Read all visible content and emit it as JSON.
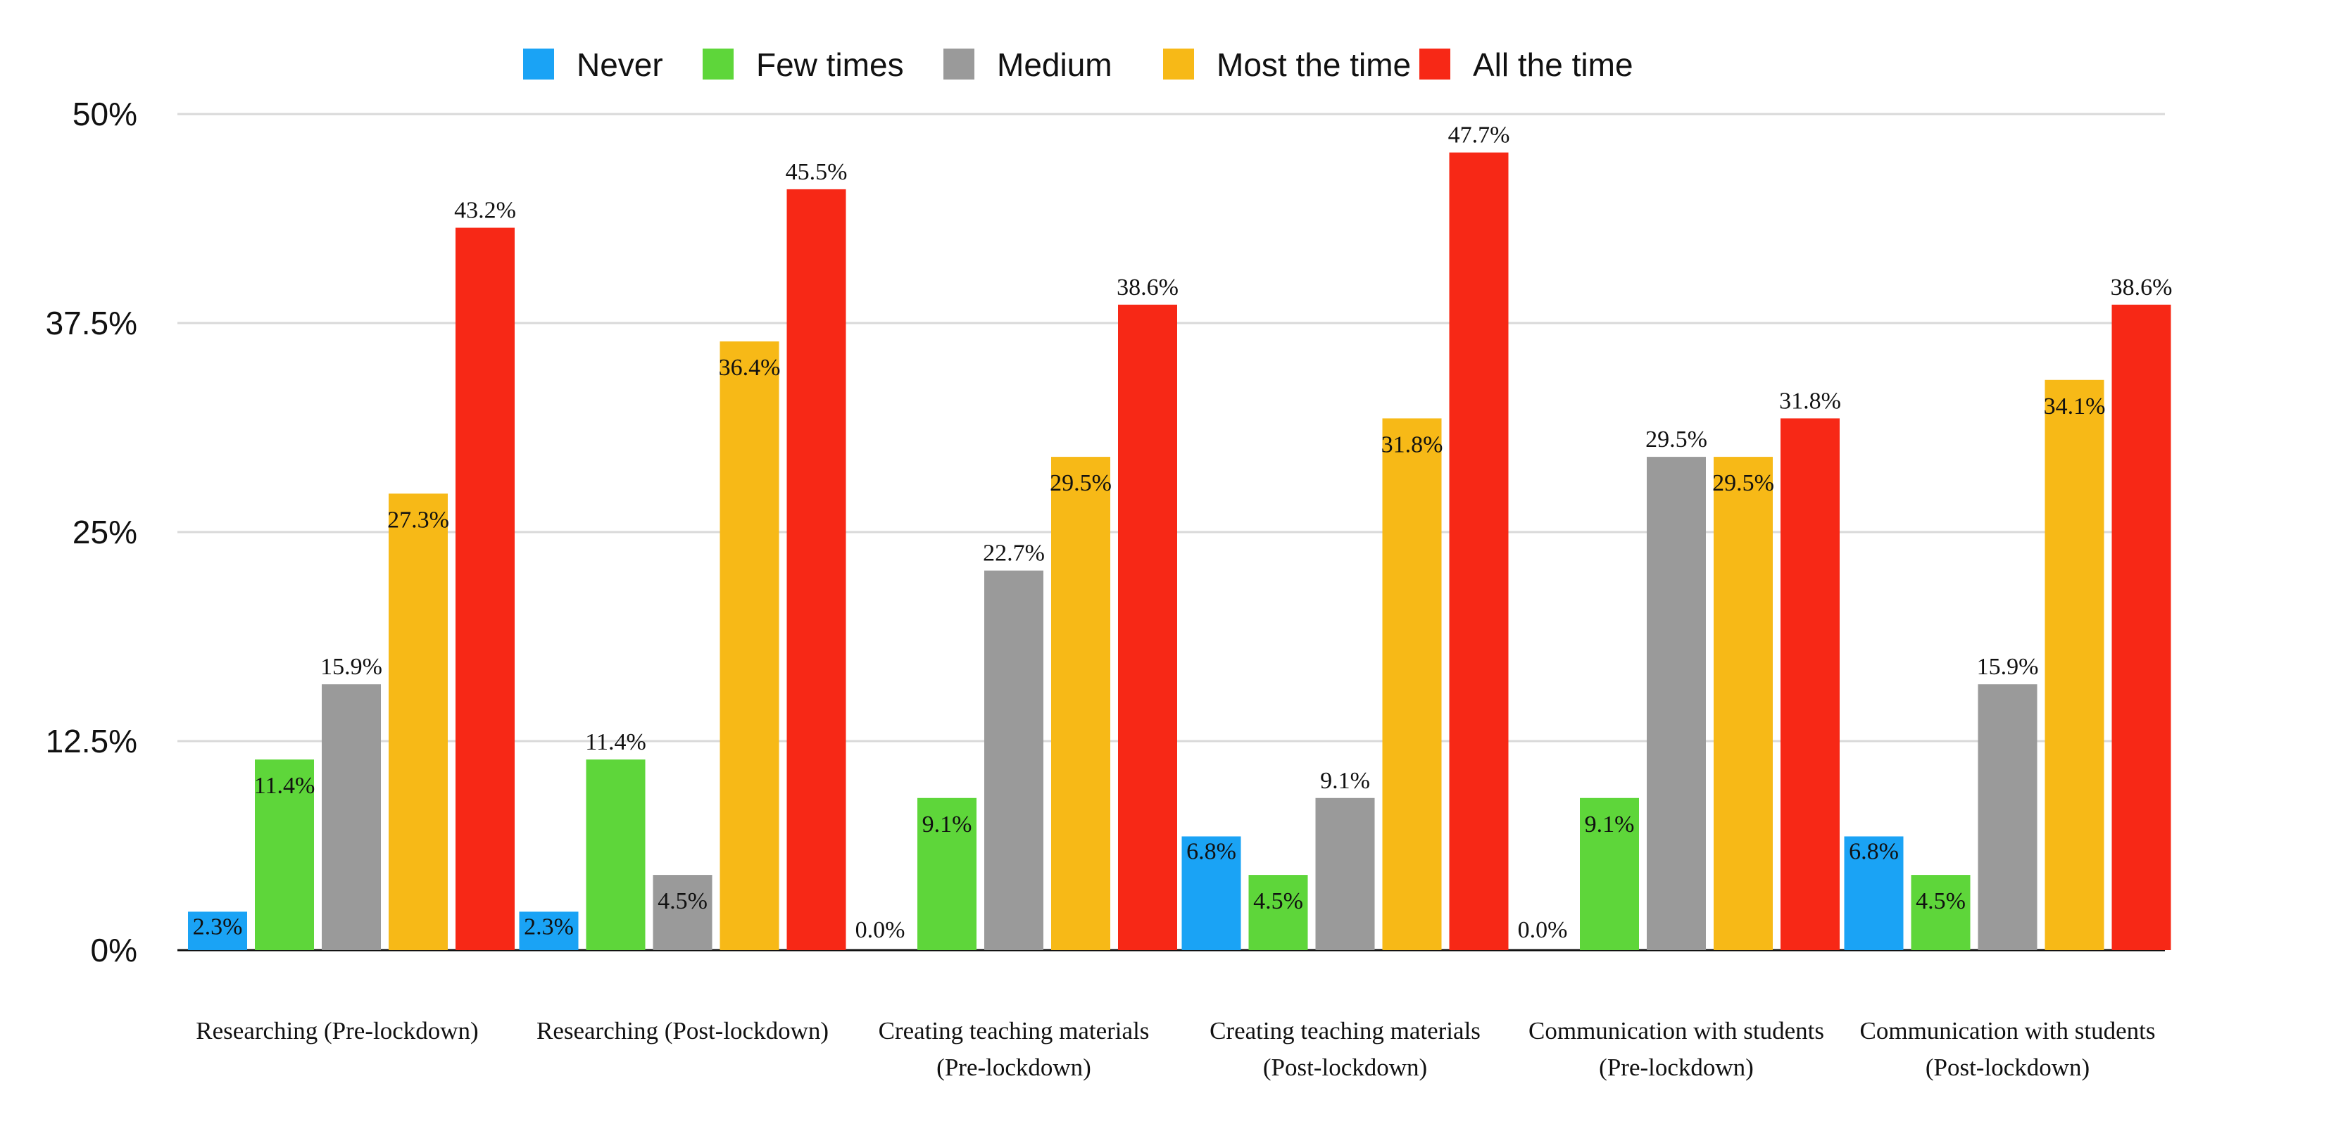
{
  "chart_data": {
    "type": "bar",
    "title": "",
    "xlabel": "",
    "ylabel": "",
    "ylim": [
      0,
      50
    ],
    "yticks": [
      0,
      12.5,
      25,
      37.5,
      50
    ],
    "ytick_labels": [
      "0%",
      "12.5%",
      "25%",
      "37.5%",
      "50%"
    ],
    "grid": true,
    "legend_position": "top",
    "categories": [
      [
        "Researching (Pre-lockdown)"
      ],
      [
        "Researching (Post-lockdown)"
      ],
      [
        "Creating teaching materials",
        "(Pre-lockdown)"
      ],
      [
        "Creating teaching materials",
        "(Post-lockdown)"
      ],
      [
        "Communication with students",
        "(Pre-lockdown)"
      ],
      [
        "Communication with students",
        "(Post-lockdown)"
      ]
    ],
    "series": [
      {
        "name": "Never",
        "color": "#1aa3f5",
        "values": [
          2.3,
          2.3,
          0.0,
          6.8,
          0.0,
          6.8
        ],
        "labels": [
          "2.3%",
          "2.3%",
          "0.0%",
          "6.8%",
          "0.0%",
          "6.8%"
        ]
      },
      {
        "name": "Few times",
        "color": "#5ed63a",
        "values": [
          11.4,
          11.4,
          9.1,
          4.5,
          9.1,
          4.5
        ],
        "labels": [
          "11.4%",
          "11.4%",
          "9.1%",
          "4.5%",
          "9.1%",
          "4.5%"
        ]
      },
      {
        "name": "Medium",
        "color": "#9a9a9a",
        "values": [
          15.9,
          4.5,
          22.7,
          9.1,
          29.5,
          15.9
        ],
        "labels": [
          "15.9%",
          "4.5%",
          "22.7%",
          "9.1%",
          "29.5%",
          "15.9%"
        ]
      },
      {
        "name": "Most the time",
        "color": "#f7b917",
        "values": [
          27.3,
          36.4,
          29.5,
          31.8,
          29.5,
          34.1
        ],
        "labels": [
          "27.3%",
          "36.4%",
          "29.5%",
          "31.8%",
          "29.5%",
          "34.1%"
        ]
      },
      {
        "name": "All the time",
        "color": "#f72816",
        "values": [
          43.2,
          45.5,
          38.6,
          47.7,
          31.8,
          38.6
        ],
        "labels": [
          "43.2%",
          "45.5%",
          "38.6%",
          "47.7%",
          "31.8%",
          "38.6%"
        ]
      }
    ]
  }
}
